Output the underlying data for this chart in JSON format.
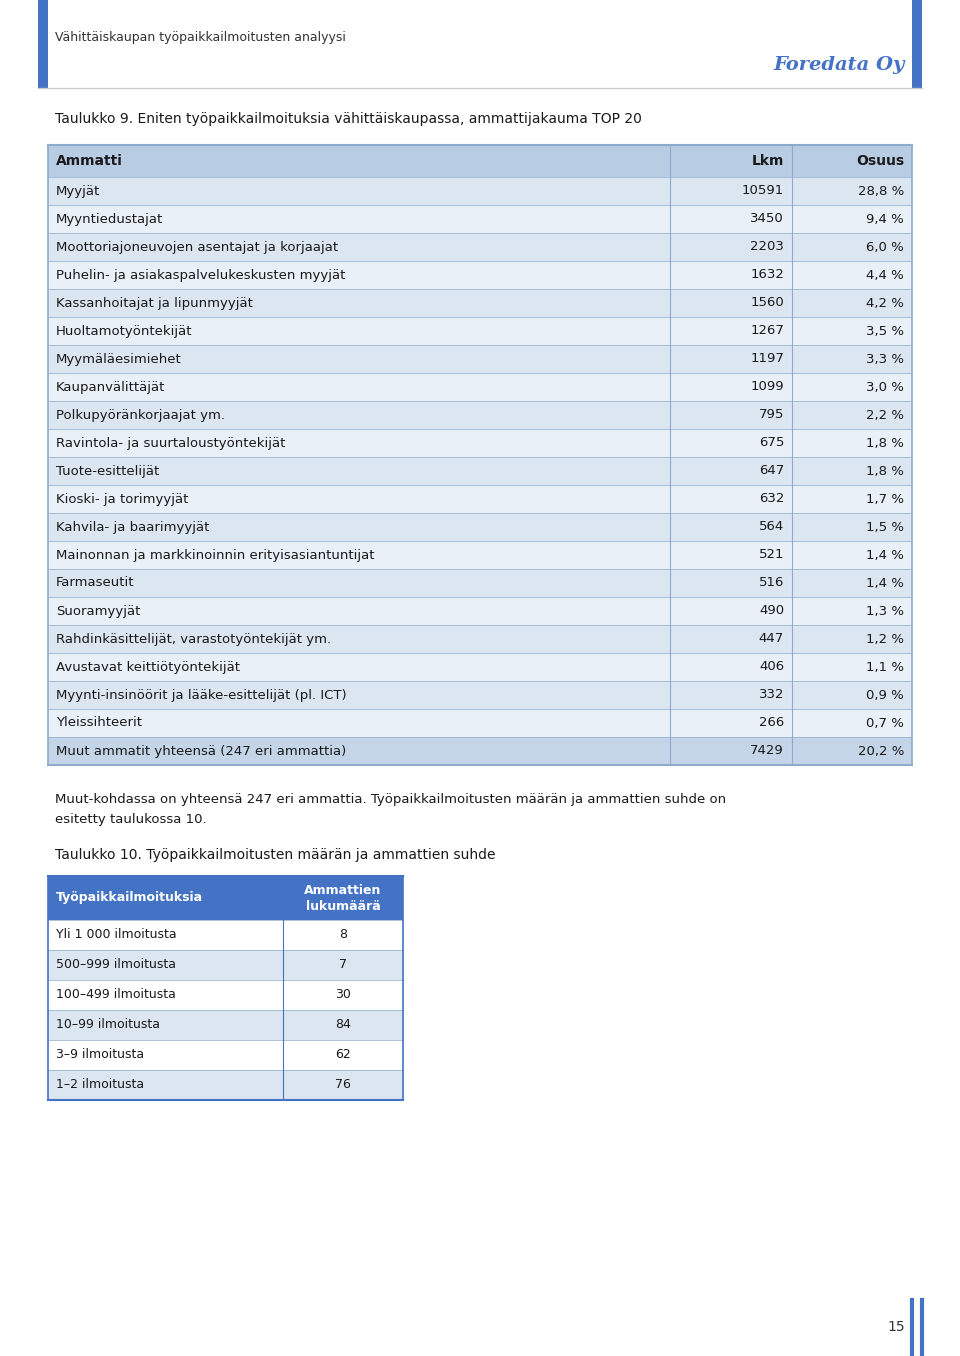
{
  "page_header_left": "Vähittäiskaupan työpaikkailmoitusten analyysi",
  "page_header_right": "Foredata Oy",
  "page_number": "15",
  "table1_title": "Taulukko 9. Eniten työpaikkailmoituksia vähittäiskaupassa, ammattijakauma TOP 20",
  "table1_headers": [
    "Ammatti",
    "Lkm",
    "Osuus"
  ],
  "table1_rows": [
    [
      "Myyjät",
      "10591",
      "28,8 %"
    ],
    [
      "Myyntiedustajat",
      "3450",
      "9,4 %"
    ],
    [
      "Moottoriajoneuvojen asentajat ja korjaajat",
      "2203",
      "6,0 %"
    ],
    [
      "Puhelin- ja asiakaspalvelukeskusten myyjät",
      "1632",
      "4,4 %"
    ],
    [
      "Kassanhoitajat ja lipunmyyjät",
      "1560",
      "4,2 %"
    ],
    [
      "Huoltamotyöntekijät",
      "1267",
      "3,5 %"
    ],
    [
      "Myymäläesimiehet",
      "1197",
      "3,3 %"
    ],
    [
      "Kaupanvälittäjät",
      "1099",
      "3,0 %"
    ],
    [
      "Polkupyöränkorjaajat ym.",
      "795",
      "2,2 %"
    ],
    [
      "Ravintola- ja suurtaloustyöntekijät",
      "675",
      "1,8 %"
    ],
    [
      "Tuote-esittelijät",
      "647",
      "1,8 %"
    ],
    [
      "Kioski- ja torimyyjät",
      "632",
      "1,7 %"
    ],
    [
      "Kahvila- ja baarimyyjät",
      "564",
      "1,5 %"
    ],
    [
      "Mainonnan ja markkinoinnin erityisasiantuntijat",
      "521",
      "1,4 %"
    ],
    [
      "Farmaseutit",
      "516",
      "1,4 %"
    ],
    [
      "Suoramyyjät",
      "490",
      "1,3 %"
    ],
    [
      "Rahdinkäsittelijät, varastotyöntekijät ym.",
      "447",
      "1,2 %"
    ],
    [
      "Avustavat keittiötyöntekijät",
      "406",
      "1,1 %"
    ],
    [
      "Myynti-insinöörit ja lääke-esittelijät (pl. ICT)",
      "332",
      "0,9 %"
    ],
    [
      "Yleissihteerit",
      "266",
      "0,7 %"
    ],
    [
      "Muut ammatit yhteensä (247 eri ammattia)",
      "7429",
      "20,2 %"
    ]
  ],
  "table1_header_bg": "#b8cce4",
  "table1_odd_bg": "#dce6f1",
  "table1_even_bg": "#eaf0f8",
  "table1_last_bg": "#c5d5e8",
  "paragraph_line1": "Muut-kohdassa on yhteensä 247 eri ammattia. Työpaikkailmoitusten määrän ja ammattien suhde on",
  "paragraph_line2": "esitetty taulukossa 10.",
  "table2_title": "Taulukko 10. Työpaikkailmoitusten määrän ja ammattien suhde",
  "table2_headers": [
    "Työpaikkailmoituksia",
    "Ammattien\nlukumäärä"
  ],
  "table2_rows": [
    [
      "Yli 1 000 ilmoitusta",
      "8"
    ],
    [
      "500–999 ilmoitusta",
      "7"
    ],
    [
      "100–499 ilmoitusta",
      "30"
    ],
    [
      "10–99 ilmoitusta",
      "84"
    ],
    [
      "3–9 ilmoitusta",
      "62"
    ],
    [
      "1–2 ilmoitusta",
      "76"
    ]
  ],
  "table2_header_bg": "#4472c4",
  "table2_header_text": "#ffffff",
  "table2_odd_bg": "#ffffff",
  "table2_even_bg": "#dce6f1",
  "header_line_color": "#4472c4",
  "foredata_color": "#4472c4",
  "bg_color": "#ffffff",
  "bar_color": "#4472c4",
  "border_color": "#8eaacc",
  "text_dark": "#1a1a1a",
  "text_medium": "#333333"
}
